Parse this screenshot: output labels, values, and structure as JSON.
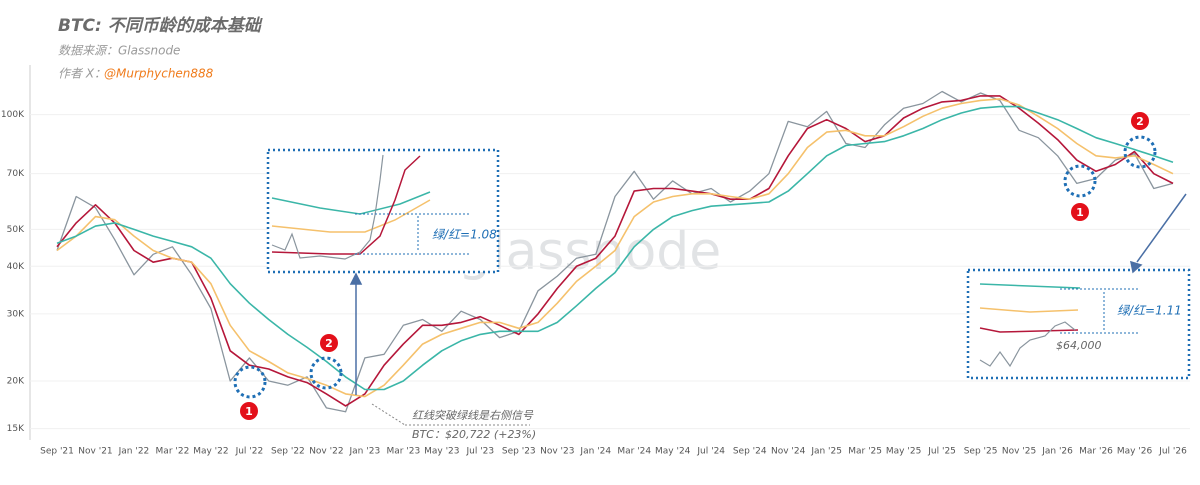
{
  "chart_data": {
    "type": "line",
    "title": "BTC: 不同币龄的成本基础",
    "source": "数据来源：Glassnode",
    "author_label": "作者 X：",
    "author_handle": "@Murphychen888",
    "watermark": "glassnode",
    "log_scale": true,
    "grid": true,
    "categories": [
      "Sep '21",
      null,
      "Nov '21",
      null,
      "Jan '22",
      null,
      "Mar '22",
      null,
      "May '22",
      null,
      "Jul '22",
      null,
      "Sep '22",
      null,
      "Nov '22",
      null,
      "Jan '23",
      null,
      "Mar '23",
      null,
      "May '23",
      null,
      "Jul '23",
      null,
      "Sep '23",
      null,
      "Nov '23",
      null,
      "Jan '24",
      null,
      "Mar '24",
      null,
      "May '24",
      null,
      "Jul '24",
      null,
      "Sep '24",
      null,
      "Nov '24",
      null,
      "Jan '25",
      null,
      "Mar '25",
      null,
      "May '25",
      null,
      "Jul '25",
      null,
      "Sep '25",
      null,
      "Nov '25",
      null,
      "Jan '26",
      null,
      "Mar '26",
      null,
      "May '26",
      null,
      "Jul '26"
    ],
    "ylim": [
      14000,
      135000
    ],
    "yticks": [
      {
        "value": 15000,
        "label": "15K"
      },
      {
        "value": 20000,
        "label": "20K"
      },
      {
        "value": 30000,
        "label": "30K"
      },
      {
        "value": 40000,
        "label": "40K"
      },
      {
        "value": 50000,
        "label": "50K"
      },
      {
        "value": 70000,
        "label": "70K"
      },
      {
        "value": 100000,
        "label": "100K"
      }
    ],
    "series": [
      {
        "name": "BTC",
        "color": "#8a959e",
        "values": [
          44000,
          61000,
          57000,
          47000,
          38000,
          43000,
          45000,
          38000,
          31000,
          20000,
          23000,
          20000,
          19500,
          20500,
          17000,
          16600,
          23000,
          23500,
          28000,
          29000,
          27000,
          30500,
          29000,
          26000,
          27000,
          34500,
          37700,
          42000,
          43000,
          61000,
          71000,
          60000,
          67000,
          62000,
          64000,
          59000,
          63000,
          70000,
          96000,
          93000,
          102000,
          84000,
          82000,
          94000,
          104000,
          107000,
          115000,
          108000,
          114000,
          109000,
          91000,
          87000,
          78000,
          66000,
          68000,
          76000,
          79000,
          64000,
          66000
        ]
      },
      {
        "name": "红线",
        "color": "#b5173a",
        "values": [
          45000,
          52000,
          58000,
          52000,
          44000,
          41000,
          42000,
          41000,
          33000,
          24000,
          22000,
          21500,
          20500,
          19800,
          18500,
          17200,
          18500,
          22000,
          25000,
          28000,
          28000,
          28500,
          29500,
          28000,
          26500,
          30000,
          35000,
          40000,
          42000,
          48000,
          63000,
          64000,
          64000,
          63000,
          62000,
          60000,
          60000,
          64000,
          78000,
          92000,
          97000,
          92000,
          85000,
          88000,
          98000,
          104000,
          108000,
          109000,
          112000,
          112000,
          104000,
          95000,
          86000,
          76000,
          71000,
          74000,
          80000,
          70000,
          66000
        ]
      },
      {
        "name": "橙线",
        "color": "#f5c16c",
        "values": [
          44000,
          48000,
          54000,
          53000,
          48000,
          44000,
          42000,
          41000,
          36000,
          28000,
          24000,
          22500,
          21000,
          20300,
          19500,
          18500,
          18200,
          19500,
          22000,
          25000,
          26500,
          27500,
          28500,
          28500,
          27500,
          28500,
          32000,
          36500,
          40000,
          44000,
          54000,
          59000,
          61000,
          62000,
          62000,
          61000,
          60000,
          62000,
          70000,
          82000,
          90000,
          91000,
          88000,
          88000,
          93000,
          99000,
          104000,
          107000,
          109000,
          110000,
          106000,
          99000,
          92000,
          84000,
          78000,
          77000,
          78000,
          74000,
          70000
        ]
      },
      {
        "name": "绿线",
        "color": "#3bb6a8",
        "values": [
          46000,
          48000,
          51000,
          52000,
          50000,
          48000,
          46500,
          45000,
          42000,
          36000,
          32000,
          29000,
          26500,
          24500,
          22500,
          20500,
          19000,
          19000,
          20000,
          22000,
          24000,
          25500,
          26500,
          27000,
          27000,
          27000,
          28500,
          31500,
          35000,
          38500,
          45000,
          50000,
          54000,
          56000,
          57500,
          58000,
          58500,
          59000,
          63000,
          70000,
          78000,
          83000,
          84000,
          85000,
          88000,
          92000,
          97000,
          101000,
          104000,
          105000,
          105000,
          101000,
          97000,
          92000,
          87000,
          84000,
          81000,
          78000,
          75000
        ]
      }
    ],
    "annotations": {
      "signal_text": "红线突破绿线是右侧信号",
      "price_text": "BTC：$20,722 (+23%)",
      "ratio_1": "绿/红=1.08",
      "ratio_2": "绿/红=1.11",
      "price_64k": "$64,000",
      "marker_labels": [
        "1",
        "2",
        "1",
        "2"
      ]
    }
  }
}
